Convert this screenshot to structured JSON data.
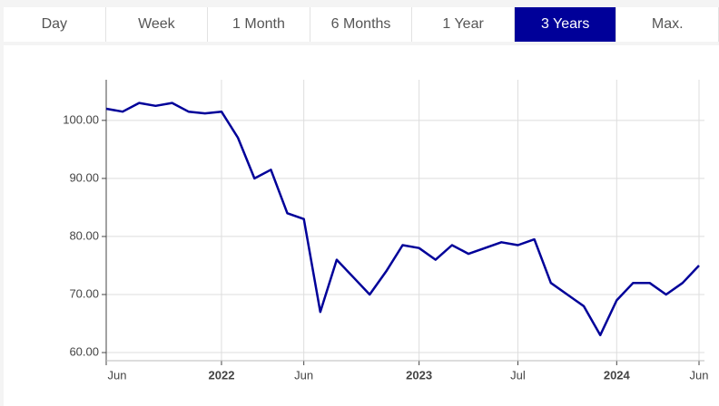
{
  "tabs": [
    {
      "label": "Day"
    },
    {
      "label": "Week"
    },
    {
      "label": "1 Month"
    },
    {
      "label": "6 Months"
    },
    {
      "label": "1 Year"
    },
    {
      "label": "3 Years",
      "active": true
    },
    {
      "label": "Max."
    }
  ],
  "chart_data": {
    "type": "line",
    "x": [
      "2021-06",
      "2021-07",
      "2021-08",
      "2021-09",
      "2021-10",
      "2021-11",
      "2021-12",
      "2022-01",
      "2022-02",
      "2022-03",
      "2022-04",
      "2022-05",
      "2022-06",
      "2022-07",
      "2022-08",
      "2022-09",
      "2022-10",
      "2022-11",
      "2022-12",
      "2023-01",
      "2023-02",
      "2023-03",
      "2023-04",
      "2023-05",
      "2023-06",
      "2023-07",
      "2023-08",
      "2023-09",
      "2023-10",
      "2023-11",
      "2023-12",
      "2024-01",
      "2024-02",
      "2024-03",
      "2024-04",
      "2024-05",
      "2024-06"
    ],
    "series": [
      {
        "color": "#000099",
        "values": [
          102,
          101.5,
          103,
          102.5,
          103,
          101.5,
          101.2,
          101.5,
          97,
          90,
          91.5,
          84,
          83,
          67,
          76,
          73,
          70,
          74,
          78.5,
          78,
          76,
          78.5,
          77,
          78,
          79,
          78.5,
          79.5,
          72,
          70,
          68,
          63,
          69,
          72,
          72,
          70,
          72,
          75
        ]
      }
    ],
    "xlim": [
      "2021-06",
      "2024-06"
    ],
    "xticks": [
      {
        "value": "2021-06",
        "label": "Jun"
      },
      {
        "value": "2022-01",
        "label": "2022"
      },
      {
        "value": "2022-06",
        "label": "Jun"
      },
      {
        "value": "2023-01",
        "label": "2023"
      },
      {
        "value": "2023-07",
        "label": "Jul"
      },
      {
        "value": "2024-01",
        "label": "2024"
      },
      {
        "value": "2024-06",
        "label": "Jun"
      }
    ],
    "ylim": [
      58.6,
      107
    ],
    "yticks": [
      {
        "value": 60,
        "label": "60.00"
      },
      {
        "value": 70,
        "label": "70.00"
      },
      {
        "value": 80,
        "label": "80.00"
      },
      {
        "value": 90,
        "label": "90.00"
      },
      {
        "value": 100,
        "label": "100.00"
      }
    ],
    "grid": true
  }
}
